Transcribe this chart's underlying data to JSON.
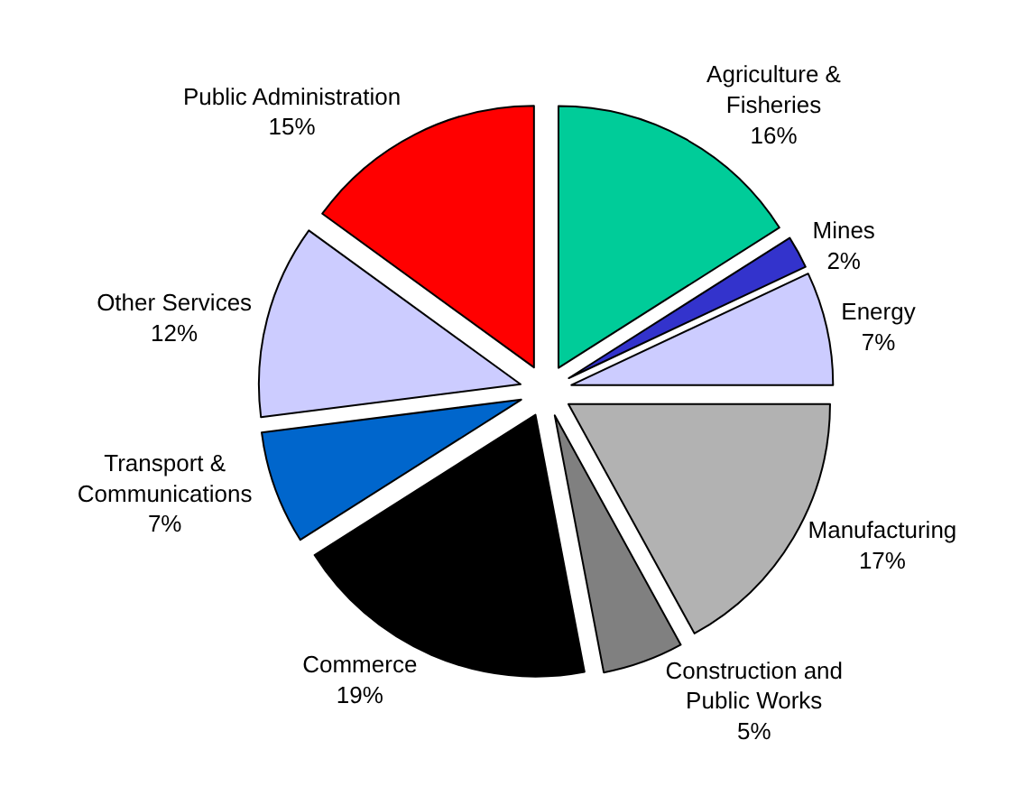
{
  "chart_data": {
    "type": "pie",
    "categories": [
      "Agriculture & Fisheries",
      "Mines",
      "Energy",
      "Manufacturing",
      "Construction and Public Works",
      "Commerce",
      "Transport & Communications",
      "Other Services",
      "Public Administration"
    ],
    "values": [
      16,
      2,
      7,
      17,
      5,
      19,
      7,
      12,
      15
    ],
    "value_labels": [
      "16%",
      "2%",
      "7%",
      "17%",
      "5%",
      "19%",
      "7%",
      "12%",
      "15%"
    ],
    "colors": [
      "#00cc99",
      "#3333cc",
      "#ccccff",
      "#b2b2b2",
      "#808080",
      "#000000",
      "#0066cc",
      "#ccccff",
      "#ff0000"
    ],
    "legend": false
  }
}
